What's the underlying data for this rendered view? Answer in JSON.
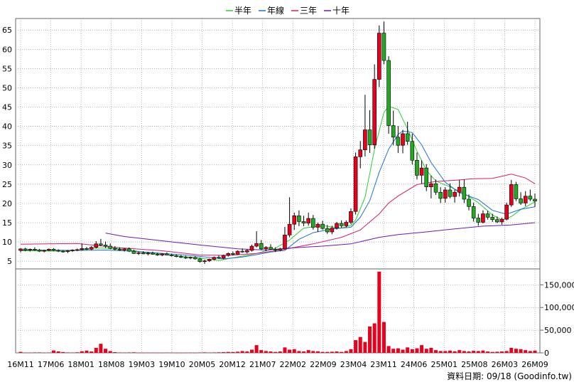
{
  "chart_data": {
    "type": "candlestick",
    "legend": [
      {
        "name": "半年",
        "color": "#33cc33"
      },
      {
        "name": "年線",
        "color": "#1f6fd1"
      },
      {
        "name": "三年",
        "color": "#d41e6e"
      },
      {
        "name": "十年",
        "color": "#6a1bb5"
      }
    ],
    "price_axis": {
      "ylim": [
        3,
        68
      ],
      "ticks": [
        5,
        10,
        15,
        20,
        25,
        30,
        35,
        40,
        45,
        50,
        55,
        60,
        65
      ]
    },
    "volume_axis": {
      "ylim": [
        0,
        185000
      ],
      "ticks": [
        0,
        50000,
        100000,
        150000
      ],
      "tick_labels": [
        "0",
        "50,000",
        "100,000",
        "150,000"
      ]
    },
    "x_labels": [
      "16M11",
      "17M06",
      "18M01",
      "18M08",
      "19M03",
      "19M10",
      "20M05",
      "20M12",
      "21M07",
      "22M02",
      "22M09",
      "23M04",
      "23M11",
      "24M06",
      "25M01",
      "25M08",
      "26M03",
      "26M09"
    ],
    "source_text": "資料日期: 09/18 (Goodinfo.tw)",
    "colors": {
      "up": "#e8001c",
      "down": "#22aa22",
      "volume": "#e8001c",
      "grid": "#999999",
      "border": "#666666"
    },
    "candles": [
      [
        0,
        7.8,
        8.4,
        7.3,
        8.2
      ],
      [
        1,
        8.2,
        8.5,
        7.6,
        7.9
      ],
      [
        2,
        7.9,
        8.3,
        7.5,
        8.1
      ],
      [
        3,
        8.1,
        8.6,
        7.7,
        7.9
      ],
      [
        4,
        7.9,
        8.2,
        7.4,
        7.6
      ],
      [
        5,
        7.6,
        8.0,
        7.3,
        7.8
      ],
      [
        6,
        7.8,
        8.3,
        7.6,
        8.1
      ],
      [
        7,
        8.1,
        8.4,
        7.6,
        7.8
      ],
      [
        8,
        7.8,
        8.1,
        7.4,
        7.6
      ],
      [
        9,
        7.6,
        7.9,
        7.2,
        7.5
      ],
      [
        10,
        7.5,
        7.9,
        7.1,
        7.7
      ],
      [
        11,
        7.7,
        8.1,
        7.4,
        7.9
      ],
      [
        12,
        7.9,
        8.3,
        7.6,
        8.0
      ],
      [
        13,
        8.0,
        9.6,
        7.8,
        8.3
      ],
      [
        14,
        8.3,
        8.7,
        7.9,
        8.1
      ],
      [
        15,
        8.1,
        8.9,
        7.9,
        8.6
      ],
      [
        16,
        8.6,
        10.2,
        8.3,
        9.5
      ],
      [
        17,
        9.5,
        10.8,
        8.9,
        9.2
      ],
      [
        18,
        9.2,
        10.1,
        8.4,
        8.9
      ],
      [
        19,
        8.9,
        9.6,
        8.1,
        8.3
      ],
      [
        20,
        8.3,
        8.9,
        7.8,
        8.1
      ],
      [
        21,
        8.1,
        8.6,
        7.7,
        7.9
      ],
      [
        22,
        7.9,
        8.4,
        7.5,
        8.2
      ],
      [
        23,
        8.2,
        8.6,
        7.4,
        7.6
      ],
      [
        24,
        7.6,
        8.0,
        6.9,
        7.0
      ],
      [
        25,
        7.0,
        7.5,
        6.6,
        7.2
      ],
      [
        26,
        7.2,
        7.6,
        6.8,
        6.9
      ],
      [
        27,
        6.9,
        7.4,
        6.5,
        7.1
      ],
      [
        28,
        7.1,
        7.5,
        6.7,
        6.8
      ],
      [
        29,
        6.8,
        7.2,
        6.4,
        6.6
      ],
      [
        30,
        6.6,
        7.1,
        6.3,
        6.9
      ],
      [
        31,
        6.9,
        7.3,
        6.5,
        6.6
      ],
      [
        32,
        6.6,
        6.9,
        6.2,
        6.4
      ],
      [
        33,
        6.4,
        6.8,
        6.0,
        6.2
      ],
      [
        34,
        6.2,
        6.6,
        5.8,
        6.0
      ],
      [
        35,
        6.0,
        6.4,
        5.6,
        5.8
      ],
      [
        36,
        5.8,
        6.2,
        5.5,
        6.0
      ],
      [
        37,
        6.0,
        6.3,
        5.4,
        5.6
      ],
      [
        38,
        5.6,
        5.9,
        4.6,
        4.9
      ],
      [
        39,
        4.9,
        5.4,
        4.3,
        5.1
      ],
      [
        40,
        5.1,
        5.7,
        4.8,
        5.5
      ],
      [
        41,
        5.5,
        6.2,
        5.2,
        6.0
      ],
      [
        42,
        6.0,
        6.5,
        5.6,
        5.8
      ],
      [
        43,
        5.8,
        6.7,
        5.5,
        6.5
      ],
      [
        44,
        6.5,
        7.3,
        6.2,
        7.0
      ],
      [
        45,
        7.0,
        7.5,
        6.5,
        6.8
      ],
      [
        46,
        6.8,
        7.8,
        6.6,
        7.6
      ],
      [
        47,
        7.6,
        8.3,
        7.2,
        7.4
      ],
      [
        48,
        7.4,
        8.1,
        7.0,
        7.8
      ],
      [
        49,
        7.8,
        9.3,
        7.5,
        8.9
      ],
      [
        50,
        8.9,
        12.8,
        8.6,
        9.6
      ],
      [
        51,
        9.6,
        10.5,
        7.9,
        8.2
      ],
      [
        52,
        8.2,
        8.9,
        7.6,
        8.6
      ],
      [
        53,
        8.6,
        9.4,
        7.9,
        8.1
      ],
      [
        54,
        8.1,
        8.6,
        7.4,
        7.9
      ],
      [
        55,
        7.9,
        8.5,
        7.6,
        8.2
      ],
      [
        56,
        8.2,
        13.9,
        8.0,
        11.8
      ],
      [
        57,
        11.8,
        21.6,
        11.2,
        14.6
      ],
      [
        58,
        14.6,
        17.6,
        13.1,
        16.8
      ],
      [
        59,
        16.8,
        18.2,
        14.1,
        15.3
      ],
      [
        60,
        15.3,
        16.8,
        14.1,
        14.9
      ],
      [
        61,
        14.9,
        17.6,
        14.2,
        16.1
      ],
      [
        62,
        16.1,
        17.0,
        13.2,
        13.8
      ],
      [
        63,
        13.8,
        15.0,
        12.6,
        14.6
      ],
      [
        64,
        14.6,
        15.5,
        13.2,
        13.5
      ],
      [
        65,
        13.5,
        14.4,
        12.1,
        12.6
      ],
      [
        66,
        12.6,
        14.2,
        12.0,
        13.6
      ],
      [
        67,
        13.6,
        15.2,
        13.2,
        14.8
      ],
      [
        68,
        14.8,
        15.6,
        13.7,
        14.2
      ],
      [
        69,
        14.2,
        15.6,
        13.8,
        15.1
      ],
      [
        70,
        15.1,
        18.7,
        14.6,
        17.9
      ],
      [
        71,
        17.9,
        33.2,
        17.1,
        32.1
      ],
      [
        72,
        32.1,
        36.2,
        29.1,
        33.9
      ],
      [
        73,
        33.9,
        48.2,
        32.2,
        39.1
      ],
      [
        74,
        39.1,
        44.2,
        33.1,
        35.2
      ],
      [
        75,
        35.2,
        56.1,
        34.2,
        52.2
      ],
      [
        76,
        52.2,
        66.2,
        50.2,
        64.2
      ],
      [
        77,
        64.2,
        67.2,
        56.1,
        57.1
      ],
      [
        78,
        57.1,
        58.2,
        38.1,
        40.2
      ],
      [
        79,
        40.2,
        44.1,
        35.1,
        37.2
      ],
      [
        80,
        37.2,
        40.1,
        33.1,
        35.1
      ],
      [
        81,
        35.1,
        39.1,
        33.0,
        38.1
      ],
      [
        82,
        38.1,
        41.2,
        35.2,
        36.1
      ],
      [
        83,
        36.1,
        38.1,
        30.1,
        31.2
      ],
      [
        84,
        31.2,
        33.2,
        26.2,
        27.3
      ],
      [
        85,
        27.3,
        31.2,
        25.1,
        29.2
      ],
      [
        86,
        29.2,
        30.2,
        23.2,
        24.3
      ],
      [
        87,
        24.3,
        27.2,
        21.3,
        25.1
      ],
      [
        88,
        25.1,
        26.2,
        22.2,
        22.9
      ],
      [
        89,
        22.9,
        24.2,
        20.1,
        21.3
      ],
      [
        90,
        21.3,
        24.2,
        20.2,
        23.5
      ],
      [
        91,
        23.5,
        25.2,
        21.3,
        21.8
      ],
      [
        92,
        21.8,
        23.6,
        20.2,
        22.9
      ],
      [
        93,
        22.9,
        26.1,
        21.8,
        24.2
      ],
      [
        94,
        24.2,
        26.2,
        20.1,
        21.1
      ],
      [
        95,
        21.1,
        22.3,
        18.2,
        19.2
      ],
      [
        96,
        19.2,
        20.2,
        15.3,
        16.2
      ],
      [
        97,
        16.2,
        17.3,
        14.2,
        15.1
      ],
      [
        98,
        15.1,
        18.2,
        14.8,
        17.3
      ],
      [
        99,
        17.3,
        18.1,
        15.8,
        16.4
      ],
      [
        100,
        16.4,
        17.3,
        15.2,
        15.8
      ],
      [
        101,
        15.8,
        16.6,
        14.9,
        15.2
      ],
      [
        102,
        15.2,
        16.3,
        14.5,
        15.9
      ],
      [
        103,
        15.9,
        20.2,
        15.6,
        19.6
      ],
      [
        104,
        19.6,
        26.1,
        19.1,
        24.9
      ],
      [
        105,
        24.9,
        25.6,
        20.6,
        21.2
      ],
      [
        106,
        21.2,
        22.9,
        19.6,
        20.1
      ],
      [
        107,
        20.1,
        23.2,
        19.3,
        21.9
      ],
      [
        108,
        21.9,
        23.6,
        20.6,
        21.1
      ],
      [
        109,
        21.1,
        22.6,
        19.1,
        20.6
      ]
    ],
    "volume": [
      2100,
      600,
      500,
      900,
      1000,
      400,
      700,
      5200,
      3200,
      1800,
      900,
      700,
      1200,
      3500,
      5000,
      3000,
      11000,
      20000,
      9000,
      4000,
      1500,
      800,
      600,
      900,
      1200,
      400,
      300,
      500,
      400,
      300,
      200,
      600,
      300,
      200,
      100,
      300,
      500,
      200,
      800,
      1000,
      600,
      900,
      1200,
      1500,
      2000,
      1800,
      2500,
      4000,
      3000,
      7000,
      17000,
      6000,
      4000,
      3000,
      2000,
      3000,
      12000,
      7000,
      8000,
      4000,
      3000,
      6000,
      4000,
      3500,
      2000,
      2000,
      2500,
      3000,
      2000,
      4000,
      8000,
      28000,
      35000,
      24000,
      58000,
      65000,
      179000,
      68000,
      15000,
      9000,
      10000,
      7000,
      12000,
      8000,
      10000,
      17000,
      9000,
      11000,
      6000,
      4000,
      4000,
      5000,
      3500,
      6000,
      4000,
      3000,
      4500,
      4000,
      5000,
      3000,
      2000,
      2500,
      3000,
      4000,
      11000,
      9000,
      8000,
      6000,
      4000,
      5000
    ],
    "ma": {
      "half_year": [
        [
          0,
          7.7
        ],
        [
          10,
          7.6
        ],
        [
          16,
          8.4
        ],
        [
          20,
          8.4
        ],
        [
          26,
          7.4
        ],
        [
          32,
          6.5
        ],
        [
          38,
          5.8
        ],
        [
          42,
          5.2
        ],
        [
          46,
          6.1
        ],
        [
          50,
          7.0
        ],
        [
          54,
          8.4
        ],
        [
          57,
          10.5
        ],
        [
          60,
          13.6
        ],
        [
          64,
          14.2
        ],
        [
          68,
          13.6
        ],
        [
          70,
          14.3
        ],
        [
          71,
          15.7
        ],
        [
          73,
          21.6
        ],
        [
          75,
          34.1
        ],
        [
          77,
          43.6
        ],
        [
          78,
          45.2
        ],
        [
          80,
          44.4
        ],
        [
          82,
          39.3
        ],
        [
          84,
          33.6
        ],
        [
          86,
          28.6
        ],
        [
          88,
          25.8
        ],
        [
          91,
          24.3
        ],
        [
          94,
          22.6
        ],
        [
          97,
          20.2
        ],
        [
          100,
          17.0
        ],
        [
          102,
          15.7
        ],
        [
          104,
          16.6
        ],
        [
          106,
          18.4
        ],
        [
          109,
          20.4
        ]
      ],
      "year": [
        [
          0,
          7.9
        ],
        [
          13,
          7.8
        ],
        [
          18,
          7.9
        ],
        [
          24,
          7.6
        ],
        [
          30,
          7.0
        ],
        [
          36,
          6.5
        ],
        [
          40,
          6.0
        ],
        [
          43,
          5.6
        ],
        [
          47,
          6.1
        ],
        [
          50,
          6.7
        ],
        [
          53,
          7.4
        ],
        [
          56,
          7.8
        ],
        [
          59,
          10.7
        ],
        [
          62,
          12.4
        ],
        [
          66,
          13.4
        ],
        [
          70,
          13.8
        ],
        [
          72,
          16.4
        ],
        [
          74,
          20.7
        ],
        [
          76,
          28.1
        ],
        [
          78,
          34.1
        ],
        [
          80,
          37.9
        ],
        [
          81,
          38.8
        ],
        [
          83,
          38.4
        ],
        [
          85,
          35.2
        ],
        [
          87,
          30.6
        ],
        [
          90,
          25.5
        ],
        [
          93,
          22.8
        ],
        [
          97,
          21.0
        ],
        [
          100,
          18.2
        ],
        [
          103,
          17.2
        ],
        [
          106,
          18.5
        ],
        [
          109,
          19.1
        ]
      ],
      "three_year": [
        [
          0,
          9.4
        ],
        [
          12,
          9.6
        ],
        [
          20,
          8.6
        ],
        [
          30,
          7.7
        ],
        [
          38,
          6.6
        ],
        [
          44,
          6.5
        ],
        [
          50,
          7.0
        ],
        [
          56,
          8.1
        ],
        [
          62,
          9.5
        ],
        [
          68,
          11.2
        ],
        [
          72,
          13.1
        ],
        [
          76,
          17.3
        ],
        [
          78,
          20.1
        ],
        [
          80,
          21.9
        ],
        [
          84,
          24.9
        ],
        [
          88,
          25.7
        ],
        [
          92,
          26.0
        ],
        [
          96,
          26.4
        ],
        [
          100,
          26.5
        ],
        [
          104,
          27.6
        ],
        [
          107,
          26.6
        ],
        [
          109,
          25.1
        ]
      ],
      "ten_year": [
        [
          18,
          12.3
        ],
        [
          22,
          11.4
        ],
        [
          30,
          10.3
        ],
        [
          38,
          9.2
        ],
        [
          46,
          8.2
        ],
        [
          52,
          7.9
        ],
        [
          58,
          8.5
        ],
        [
          64,
          8.9
        ],
        [
          70,
          9.5
        ],
        [
          76,
          11.2
        ],
        [
          80,
          11.9
        ],
        [
          86,
          12.6
        ],
        [
          92,
          13.4
        ],
        [
          98,
          14.1
        ],
        [
          104,
          14.4
        ],
        [
          109,
          15.0
        ]
      ]
    }
  }
}
